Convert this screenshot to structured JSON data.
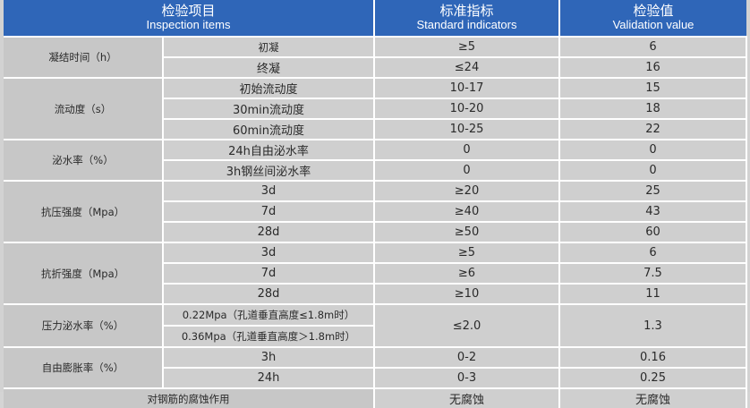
{
  "header": {
    "item_cn": "检验项目",
    "item_en": "Inspection items",
    "std_cn": "标准指标",
    "std_en": "Standard indicators",
    "val_cn": "检验值",
    "val_en": "Validation value"
  },
  "rows": {
    "setting": {
      "category": "凝结时间（h）",
      "r0": {
        "sub": "初凝",
        "std": "≥5",
        "val": "6"
      },
      "r1": {
        "sub": "终凝",
        "std": "≤24",
        "val": "16"
      }
    },
    "fluidity": {
      "category": "流动度（s）",
      "r0": {
        "sub": "初始流动度",
        "std": "10-17",
        "val": "15"
      },
      "r1": {
        "sub": "30min流动度",
        "std": "10-20",
        "val": "18"
      },
      "r2": {
        "sub": "60min流动度",
        "std": "10-25",
        "val": "22"
      }
    },
    "bleeding": {
      "category": "泌水率（%）",
      "r0": {
        "sub": "24h自由泌水率",
        "std": "0",
        "val": "0"
      },
      "r1": {
        "sub": "3h钢丝间泌水率",
        "std": "0",
        "val": "0"
      }
    },
    "compressive": {
      "category": "抗压强度（Mpa）",
      "r0": {
        "sub": "3d",
        "std": "≥20",
        "val": "25"
      },
      "r1": {
        "sub": "7d",
        "std": "≥40",
        "val": "43"
      },
      "r2": {
        "sub": "28d",
        "std": "≥50",
        "val": "60"
      }
    },
    "flexural": {
      "category": "抗折强度（Mpa）",
      "r0": {
        "sub": "3d",
        "std": "≥5",
        "val": "6"
      },
      "r1": {
        "sub": "7d",
        "std": "≥6",
        "val": "7.5"
      },
      "r2": {
        "sub": "28d",
        "std": "≥10",
        "val": "11"
      }
    },
    "pressure_bleeding": {
      "category": "压力泌水率（%）",
      "r0": {
        "sub": "0.22Mpa（孔道垂直高度≤1.8m时）"
      },
      "r1": {
        "sub": "0.36Mpa（孔道垂直高度＞1.8m时）"
      },
      "std": "≤2.0",
      "val": "1.3"
    },
    "expansion": {
      "category": "自由膨胀率（%）",
      "r0": {
        "sub": "3h",
        "std": "0-2",
        "val": "0.16"
      },
      "r1": {
        "sub": "24h",
        "std": "0-3",
        "val": "0.25"
      }
    },
    "corrosion": {
      "category": "对钢筋的腐蚀作用",
      "std": "无腐蚀",
      "val": "无腐蚀"
    }
  }
}
